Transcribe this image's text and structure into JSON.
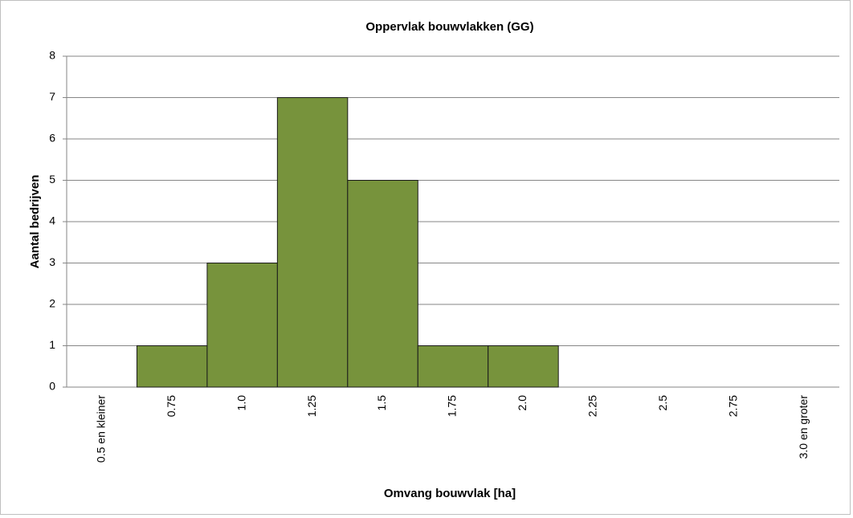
{
  "chart_data": {
    "type": "bar",
    "title": "Oppervlak bouwvlakken (GG)",
    "x_label": "Omvang bouwvlak [ha]",
    "y_label": "Aantal bedrijven",
    "categories": [
      "0.5 en kleiner",
      "0.75",
      "1.0",
      "1.25",
      "1.5",
      "1.75",
      "2.0",
      "2.25",
      "2.5",
      "2.75",
      "3.0 en groter"
    ],
    "values": [
      0,
      1,
      3,
      7,
      5,
      1,
      1,
      0,
      0,
      0,
      0
    ],
    "color": "#77933c",
    "ylim": [
      0,
      8
    ],
    "yticks": [
      0,
      1,
      2,
      3,
      4,
      5,
      6,
      7,
      8
    ],
    "grid": true
  }
}
